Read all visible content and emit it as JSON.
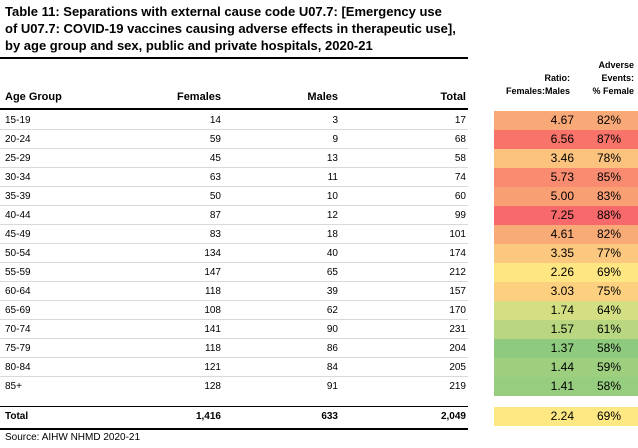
{
  "title": "Table 11: Separations with external cause code U07.7: [Emergency use\nof U07.7: COVID-19 vaccines causing adverse effects in therapeutic use],\nby age group and sex, public and private hospitals, 2020-21",
  "headers": {
    "age_group": "Age Group",
    "females": "Females",
    "males": "Males",
    "total": "Total",
    "ratio_line1": "Ratio:",
    "ratio_line2": "Females:Males",
    "pct_line1": "Adverse",
    "pct_line2": "Events:",
    "pct_line3": "% Female"
  },
  "rows": [
    {
      "age": "15-19",
      "females": "14",
      "males": "3",
      "total": "17",
      "ratio": "4.67",
      "pct": "82%",
      "ratio_color": "#f9a977",
      "pct_color": "#f9a977"
    },
    {
      "age": "20-24",
      "females": "59",
      "males": "9",
      "total": "68",
      "ratio": "6.56",
      "pct": "87%",
      "ratio_color": "#f8736a",
      "pct_color": "#f8736a"
    },
    {
      "age": "25-29",
      "females": "45",
      "males": "13",
      "total": "58",
      "ratio": "3.46",
      "pct": "78%",
      "ratio_color": "#fbc37d",
      "pct_color": "#fbc37d"
    },
    {
      "age": "30-34",
      "females": "63",
      "males": "11",
      "total": "74",
      "ratio": "5.73",
      "pct": "85%",
      "ratio_color": "#f98b70",
      "pct_color": "#f98b70"
    },
    {
      "age": "35-39",
      "females": "50",
      "males": "10",
      "total": "60",
      "ratio": "5.00",
      "pct": "83%",
      "ratio_color": "#f99f74",
      "pct_color": "#f99f74"
    },
    {
      "age": "40-44",
      "females": "87",
      "males": "12",
      "total": "99",
      "ratio": "7.25",
      "pct": "88%",
      "ratio_color": "#f8696b",
      "pct_color": "#f8696b"
    },
    {
      "age": "45-49",
      "females": "83",
      "males": "18",
      "total": "101",
      "ratio": "4.61",
      "pct": "82%",
      "ratio_color": "#f9ab77",
      "pct_color": "#f9ab77"
    },
    {
      "age": "50-54",
      "females": "134",
      "males": "40",
      "total": "174",
      "ratio": "3.35",
      "pct": "77%",
      "ratio_color": "#fcc77e",
      "pct_color": "#fcc77e"
    },
    {
      "age": "55-59",
      "females": "147",
      "males": "65",
      "total": "212",
      "ratio": "2.26",
      "pct": "69%",
      "ratio_color": "#fee783",
      "pct_color": "#fee783"
    },
    {
      "age": "60-64",
      "females": "118",
      "males": "39",
      "total": "157",
      "ratio": "3.03",
      "pct": "75%",
      "ratio_color": "#fcd07f",
      "pct_color": "#fcd07f"
    },
    {
      "age": "65-69",
      "females": "108",
      "males": "62",
      "total": "170",
      "ratio": "1.74",
      "pct": "64%",
      "ratio_color": "#d3df82",
      "pct_color": "#d3df82"
    },
    {
      "age": "70-74",
      "females": "141",
      "males": "90",
      "total": "231",
      "ratio": "1.57",
      "pct": "61%",
      "ratio_color": "#b8d780",
      "pct_color": "#b8d780"
    },
    {
      "age": "75-79",
      "females": "118",
      "males": "86",
      "total": "204",
      "ratio": "1.37",
      "pct": "58%",
      "ratio_color": "#8fcb7e",
      "pct_color": "#8fcb7e"
    },
    {
      "age": "80-84",
      "females": "121",
      "males": "84",
      "total": "205",
      "ratio": "1.44",
      "pct": "59%",
      "ratio_color": "#9dcf7f",
      "pct_color": "#9dcf7f"
    },
    {
      "age": "85+",
      "females": "128",
      "males": "91",
      "total": "219",
      "ratio": "1.41",
      "pct": "58%",
      "ratio_color": "#96cd7e",
      "pct_color": "#96cd7e"
    }
  ],
  "total_row": {
    "age": "Total",
    "females": "1,416",
    "males": "633",
    "total": "2,049",
    "ratio": "2.24",
    "pct": "69%",
    "ratio_color": "#fee883",
    "pct_color": "#fee883"
  },
  "source": "Source: AIHW NHMD 2020-21"
}
